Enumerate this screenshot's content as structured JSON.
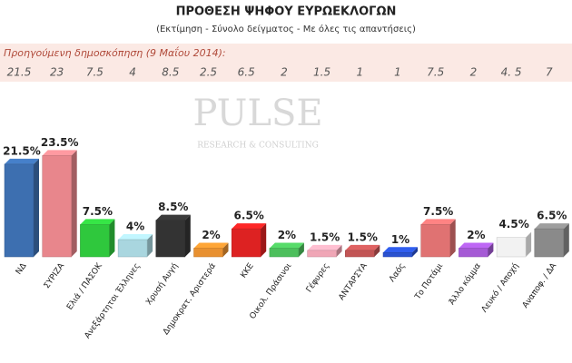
{
  "chart_data": {
    "type": "bar3d",
    "title": "ΠΡΟΘΕΣΗ ΨΗΦΟΥ ΕΥΡΩΕΚΛΟΓΩΝ",
    "subtitle": "(Εκτίμηση - Σύνολο δείγματος - Με όλες τις απαντήσεις)",
    "watermark": "PULSE",
    "watermark_sub": "RESEARCH & CONSULTING",
    "categories": [
      "ΝΔ",
      "ΣΥΡΙΖΑ",
      "Ελιά / ΠΑΣΟΚ",
      "Ανεξάρτητοι Έλληνες",
      "Χρυσή Αυγή",
      "Δημοκρατ. Αριστερά",
      "ΚΚΕ",
      "Οικολ. Πράσινοι",
      "Γέφυρες",
      "ΑΝΤΑΡΣΥΑ",
      "Λαός",
      "Το Ποτάμι",
      "Άλλο κόμμα",
      "Λευκό / Αποχή",
      "Αναποφ. / ΔΑ"
    ],
    "values": [
      21.5,
      23.5,
      7.5,
      4,
      8.5,
      2,
      6.5,
      2,
      1.5,
      1.5,
      1,
      7.5,
      2,
      4.5,
      6.5
    ],
    "value_labels": [
      "21.5%",
      "23.5%",
      "7.5%",
      "4%",
      "8.5%",
      "2%",
      "6.5%",
      "2%",
      "1.5%",
      "1.5%",
      "1%",
      "7.5%",
      "2%",
      "4.5%",
      "6.5%"
    ],
    "colors": [
      "#3d6fb0",
      "#e8868c",
      "#2fc83d",
      "#a9d6df",
      "#333333",
      "#e89030",
      "#dd2222",
      "#4cbf5c",
      "#f0a6b6",
      "#c25555",
      "#2a52d0",
      "#e07272",
      "#a55ad5",
      "#f2f2f2",
      "#8a8a8a"
    ],
    "previous": {
      "label": "Προηγούμενη δημοσκόπηση  (9 Μαΐου 2014):",
      "values": [
        21.5,
        23,
        7.5,
        4,
        8.5,
        2.5,
        6.5,
        2,
        1.5,
        1,
        1,
        7.5,
        2,
        4.5,
        7
      ],
      "value_labels": [
        "21.5",
        "23",
        "7.5",
        "4",
        "8.5",
        "2.5",
        "6.5",
        "2",
        "1.5",
        "1",
        "1",
        "7.5",
        "2",
        "4. 5",
        "7"
      ]
    }
  }
}
